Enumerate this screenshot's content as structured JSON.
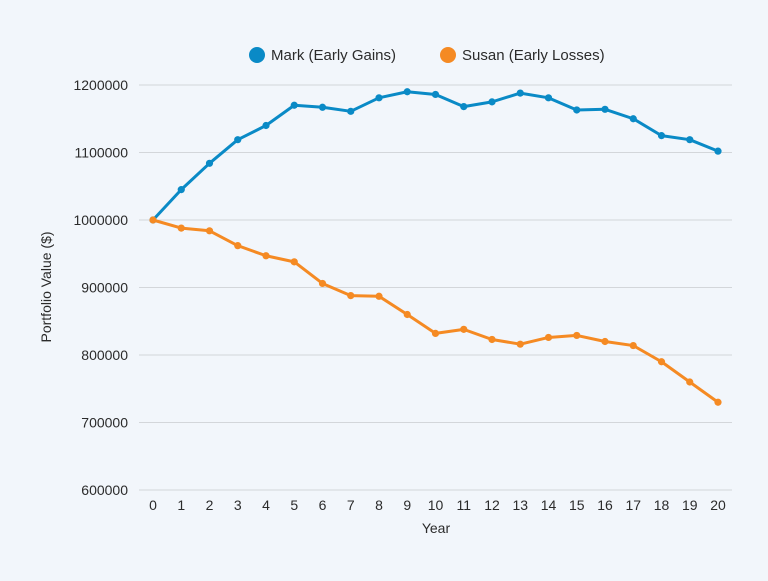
{
  "chart_data": {
    "type": "line",
    "title": "",
    "xlabel": "Year",
    "ylabel": "Portfolio Value ($)",
    "x": [
      0,
      1,
      2,
      3,
      4,
      5,
      6,
      7,
      8,
      9,
      10,
      11,
      12,
      13,
      14,
      15,
      16,
      17,
      18,
      19,
      20
    ],
    "ylim": [
      600000,
      1200000
    ],
    "yticks": [
      600000,
      700000,
      800000,
      900000,
      1000000,
      1100000,
      1200000
    ],
    "grid": "horizontal",
    "legend_position": "top",
    "series": [
      {
        "name": "Mark (Early Gains)",
        "color": "#0a8ac6",
        "values": [
          1000000,
          1045000,
          1084000,
          1119000,
          1140000,
          1170000,
          1167000,
          1161000,
          1181000,
          1190000,
          1186000,
          1168000,
          1175000,
          1188000,
          1181000,
          1163000,
          1164000,
          1150000,
          1125000,
          1119000,
          1102000
        ]
      },
      {
        "name": "Susan (Early Losses)",
        "color": "#f58a23",
        "values": [
          1000000,
          988000,
          984000,
          962000,
          947000,
          938000,
          906000,
          888000,
          887000,
          860000,
          832000,
          838000,
          823000,
          816000,
          826000,
          829000,
          820000,
          814000,
          790000,
          760000,
          730000
        ]
      }
    ]
  },
  "style": {
    "background": "#f2f6fb",
    "grid_color": "#d3d6da",
    "text_color": "#2b2b2b"
  }
}
